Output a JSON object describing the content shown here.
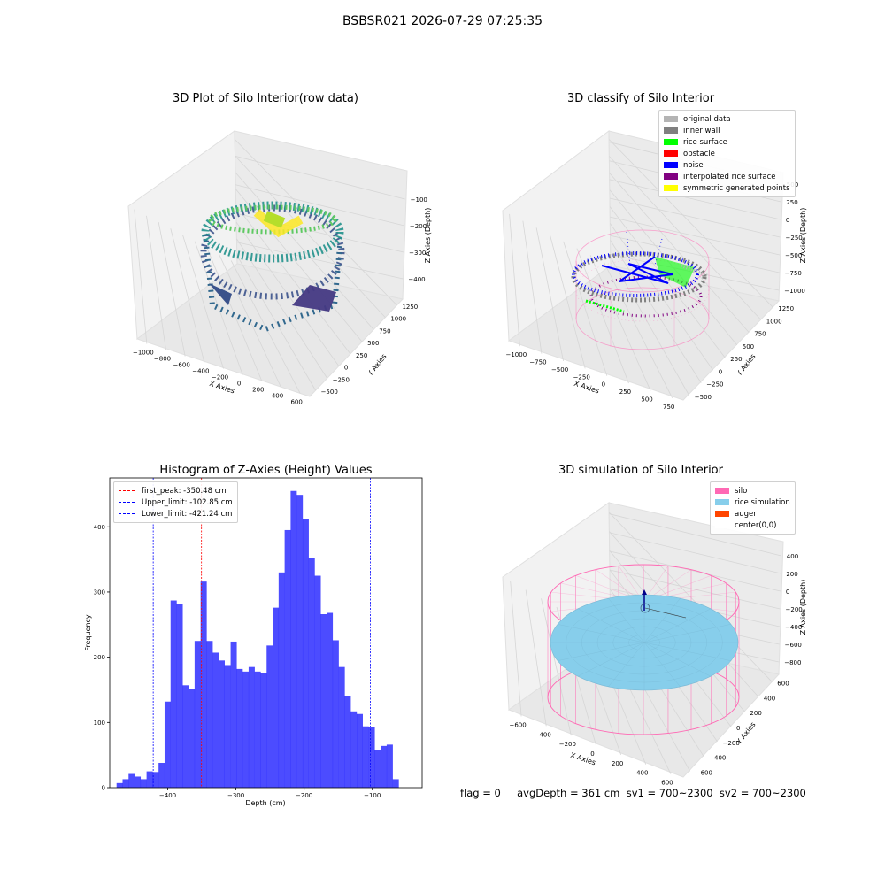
{
  "suptitle": "BSBSR021 2026-07-29 07:25:35",
  "panels": {
    "raw": {
      "title": "3D Plot of Silo Interior(row data)",
      "xlabel": "X Axies",
      "ylabel": "Y Axies",
      "zlabel": "Z Axies (Depth)",
      "xticks": [
        "−1000",
        "−800",
        "−600",
        "−400",
        "−200",
        "0",
        "200",
        "400",
        "600"
      ],
      "yticks": [
        "−500",
        "−250",
        "0",
        "250",
        "500",
        "750",
        "1000",
        "1250"
      ],
      "zticks": [
        "−100",
        "−200",
        "−300",
        "−400"
      ],
      "colormap": "viridis"
    },
    "classify": {
      "title": "3D classify of Silo Interior",
      "xlabel": "X Axies",
      "ylabel": "Y Axies",
      "zlabel": "Z Axies (Depth)",
      "xticks": [
        "−1000",
        "−750",
        "−500",
        "−250",
        "0",
        "250",
        "500",
        "750"
      ],
      "yticks": [
        "−500",
        "−250",
        "0",
        "250",
        "500",
        "750",
        "1000",
        "1250"
      ],
      "zticks": [
        "500",
        "250",
        "0",
        "−250",
        "−500",
        "−750",
        "−1000"
      ],
      "zticks_hidden": [
        "750"
      ],
      "legend": [
        {
          "label": "original data",
          "color": "#b4b4b4"
        },
        {
          "label": "inner wall",
          "color": "#808080"
        },
        {
          "label": "rice surface",
          "color": "#00ff00"
        },
        {
          "label": "obstacle",
          "color": "#ff0000"
        },
        {
          "label": "noise",
          "color": "#0000ff"
        },
        {
          "label": "interpolated rice surface",
          "color": "#800080"
        },
        {
          "label": "symmetric generated points",
          "color": "#ffff00"
        }
      ]
    },
    "simulation": {
      "title": "3D simulation of Silo Interior",
      "xlabel": "X Axies",
      "ylabel": "Y Axies",
      "zlabel": "Z Axies (Depth)",
      "xticks": [
        "−600",
        "−400",
        "−200",
        "0",
        "200",
        "400",
        "600"
      ],
      "yticks": [
        "−600",
        "−400",
        "−200",
        "0",
        "200",
        "400",
        "600"
      ],
      "zticks": [
        "400",
        "200",
        "0",
        "−200",
        "−400",
        "−600",
        "−800"
      ],
      "legend": [
        {
          "label": "silo",
          "color": "#ff69b4"
        },
        {
          "label": "rice simulation",
          "color": "#87ceeb"
        },
        {
          "label": "auger",
          "color": "#ff4500"
        },
        {
          "label": "center(0,0)",
          "color": "#ffffff"
        }
      ]
    }
  },
  "chart_data": {
    "type": "bar",
    "title": "Histogram of Z-Axies (Height) Values",
    "xlabel": "Depth (cm)",
    "ylabel": "Frequency",
    "xlim": [
      -485,
      -27
    ],
    "ylim": [
      0,
      475
    ],
    "xticks": [
      -400,
      -300,
      -200,
      -100
    ],
    "yticks": [
      0,
      100,
      200,
      300,
      400
    ],
    "bin_start": -475,
    "bin_width": 8.8,
    "counts": [
      7,
      13,
      21,
      17,
      13,
      25,
      24,
      38,
      132,
      287,
      282,
      157,
      151,
      225,
      316,
      225,
      207,
      195,
      188,
      224,
      182,
      178,
      185,
      178,
      176,
      218,
      276,
      330,
      395,
      455,
      449,
      412,
      352,
      325,
      266,
      268,
      226,
      185,
      141,
      117,
      113,
      94,
      93,
      57,
      64,
      66,
      13
    ],
    "bar_color": "#0000ff",
    "bar_opacity": 0.7,
    "vlines": [
      {
        "label": "first_peak: -350.48 cm",
        "x": -350.48,
        "color": "#ff0000"
      },
      {
        "label": "Upper_limit: -102.85 cm",
        "x": -102.85,
        "color": "#0000ff"
      },
      {
        "label": "Lower_limit: -421.24 cm",
        "x": -421.24,
        "color": "#0000ff"
      }
    ],
    "legend_position": "upper left"
  },
  "status_text": "flag = 0     avgDepth = 361 cm  sv1 = 700~2300  sv2 = 700~2300"
}
